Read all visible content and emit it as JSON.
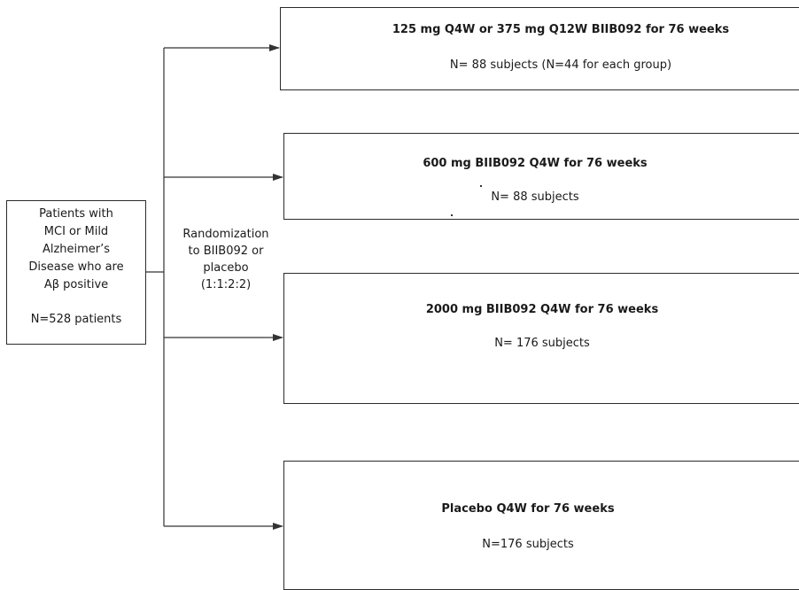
{
  "source": {
    "lines": [
      "Patients with",
      "MCI or Mild",
      "Alzheimer’s",
      "Disease who are",
      "Aβ positive"
    ],
    "count": "N=528 patients"
  },
  "randomization": {
    "lines": [
      "Randomization",
      "to BIIB092 or",
      "placebo",
      "(1:1:2:2)"
    ]
  },
  "arms": [
    {
      "title": "125 mg  Q4W or 375 mg Q12W BIIB092 for 76 weeks",
      "subjects": "N= 88 subjects (N=44 for each group)"
    },
    {
      "title": "600 mg BIIB092 Q4W for 76 weeks",
      "subjects": "N= 88 subjects"
    },
    {
      "title": "2000 mg BIIB092 Q4W for 76 weeks",
      "subjects": "N= 176 subjects"
    },
    {
      "title": "Placebo Q4W for 76 weeks",
      "subjects": "N=176 subjects"
    }
  ]
}
